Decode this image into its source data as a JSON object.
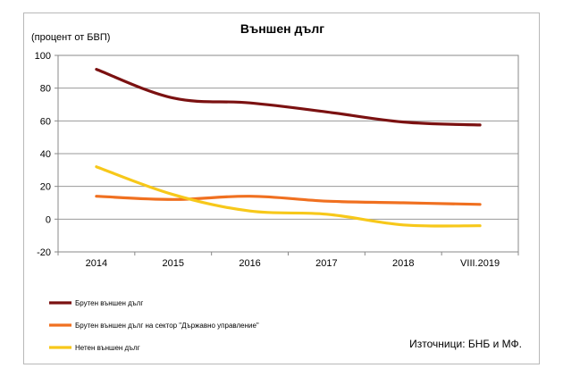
{
  "chart_data": {
    "type": "line",
    "title": "Външен дълг",
    "ylabel": "(процент от БВП)",
    "xlabel": "",
    "categories": [
      "2014",
      "2015",
      "2016",
      "2017",
      "2018",
      "VIII.2019"
    ],
    "ylim": [
      -20,
      100
    ],
    "yticks": [
      -20,
      0,
      20,
      40,
      60,
      80,
      100
    ],
    "grid": true,
    "legend": "bottom-left",
    "series": [
      {
        "name": "Брутен външен дълг",
        "color": "#7b1111",
        "values": [
          91.5,
          74.0,
          71.0,
          65.5,
          59.3,
          57.5
        ]
      },
      {
        "name": "Брутен външен дълг на сектор \"Държавно управление\"",
        "color": "#f07020",
        "values": [
          14.0,
          12.0,
          14.0,
          11.0,
          10.0,
          9.0
        ]
      },
      {
        "name": "Нетен външен дълг",
        "color": "#f7c81a",
        "values": [
          32.0,
          15.0,
          5.0,
          3.0,
          -3.5,
          -4.0
        ]
      }
    ],
    "source": "Източници: БНБ и МФ."
  }
}
